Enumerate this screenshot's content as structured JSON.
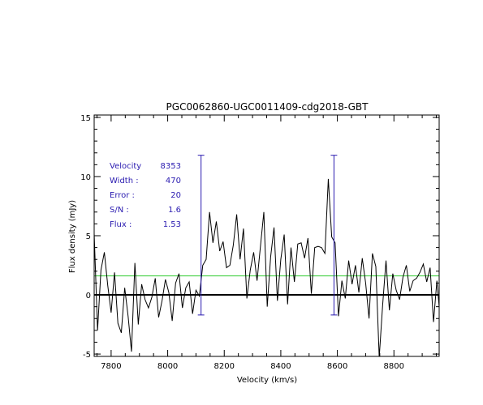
{
  "chart_data": {
    "type": "line",
    "title": "PGC0062860-UGC0011409-cdg2018-GBT",
    "xlabel": "Velocity (km/s)",
    "ylabel": "Flux density (mJy)",
    "xlim": [
      7740,
      8960
    ],
    "ylim": [
      -5.2,
      15.2
    ],
    "x_ticks": [
      {
        "value": 7800,
        "label": "7800"
      },
      {
        "value": 8000,
        "label": "8000"
      },
      {
        "value": 8200,
        "label": "8200"
      },
      {
        "value": 8400,
        "label": "8400"
      },
      {
        "value": 8600,
        "label": "8600"
      },
      {
        "value": 8800,
        "label": "8800"
      }
    ],
    "y_ticks": [
      {
        "value": -5,
        "label": "-5"
      },
      {
        "value": 0,
        "label": "0"
      },
      {
        "value": 5,
        "label": "5"
      },
      {
        "value": 10,
        "label": "10"
      },
      {
        "value": 15,
        "label": "15"
      }
    ],
    "series": [
      {
        "kind": "spectrum",
        "color": "#000000",
        "x": [
          7740,
          7752,
          7764,
          7776,
          7788,
          7800,
          7812,
          7824,
          7836,
          7848,
          7860,
          7872,
          7884,
          7896,
          7908,
          7920,
          7932,
          7944,
          7956,
          7968,
          7980,
          7992,
          8004,
          8016,
          8028,
          8040,
          8052,
          8064,
          8076,
          8088,
          8100,
          8112,
          8124,
          8136,
          8148,
          8160,
          8172,
          8184,
          8196,
          8208,
          8220,
          8232,
          8244,
          8256,
          8268,
          8280,
          8292,
          8304,
          8316,
          8328,
          8340,
          8352,
          8364,
          8376,
          8388,
          8400,
          8412,
          8424,
          8436,
          8448,
          8460,
          8472,
          8484,
          8496,
          8508,
          8520,
          8532,
          8544,
          8556,
          8568,
          8580,
          8592,
          8604,
          8616,
          8628,
          8640,
          8652,
          8664,
          8676,
          8688,
          8700,
          8712,
          8724,
          8736,
          8748,
          8760,
          8772,
          8784,
          8796,
          8808,
          8820,
          8832,
          8844,
          8856,
          8868,
          8880,
          8892,
          8904,
          8916,
          8928,
          8940,
          8952,
          8960
        ],
        "y": [
          5.2,
          -3.0,
          2.1,
          3.6,
          0.8,
          -1.5,
          1.9,
          -2.4,
          -3.2,
          0.6,
          -1.8,
          -4.8,
          2.7,
          -2.5,
          0.9,
          -0.4,
          -1.1,
          -0.2,
          1.4,
          -1.9,
          -0.5,
          1.3,
          0.2,
          -2.2,
          1.0,
          1.8,
          -1.1,
          0.6,
          1.1,
          -1.6,
          0.4,
          -0.1,
          2.5,
          3.0,
          7.0,
          4.4,
          6.2,
          3.7,
          4.5,
          2.3,
          2.5,
          4.2,
          6.8,
          3.0,
          5.6,
          -0.3,
          2.1,
          3.6,
          1.2,
          4.1,
          7.0,
          -1.0,
          3.2,
          5.7,
          -0.5,
          3.0,
          5.1,
          -0.8,
          4.0,
          1.1,
          4.3,
          4.4,
          3.1,
          4.8,
          0.1,
          4.0,
          4.1,
          4.0,
          3.5,
          9.8,
          4.9,
          4.4,
          -1.8,
          1.2,
          -0.3,
          2.9,
          0.9,
          2.5,
          0.2,
          3.1,
          1.0,
          -2.0,
          3.5,
          2.4,
          -5.3,
          -0.9,
          2.9,
          -1.3,
          1.8,
          0.4,
          -0.4,
          1.5,
          2.5,
          0.3,
          1.2,
          1.4,
          1.9,
          2.6,
          1.1,
          2.3,
          -2.3,
          1.2,
          -1.0
        ]
      }
    ],
    "reference_lines": [
      {
        "kind": "zero-line",
        "y": 0,
        "color": "#000000"
      },
      {
        "kind": "noise-level",
        "y": 1.6,
        "color": "#33cc33"
      }
    ],
    "velocity_markers": [
      {
        "x": 8118,
        "y_top": 11.8,
        "y_bottom": -1.7,
        "color": "#2a1bb0"
      },
      {
        "x": 8588,
        "y_top": 11.8,
        "y_bottom": -1.7,
        "color": "#2a1bb0"
      }
    ],
    "info_box": [
      {
        "label": "Velocity",
        "value": "8353"
      },
      {
        "label": "Width :",
        "value": "470"
      },
      {
        "label": "Error :",
        "value": "20"
      },
      {
        "label": "S/N :",
        "value": "1.6"
      },
      {
        "label": "Flux :",
        "value": "1.53"
      }
    ],
    "grid": false,
    "legend": "none"
  }
}
